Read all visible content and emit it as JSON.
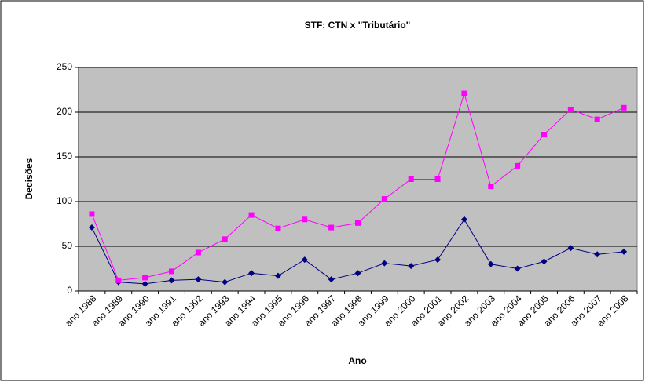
{
  "chart_data": {
    "type": "line",
    "title": "STF: CTN x \"Tributário\"",
    "x_label": "Ano",
    "y_label": "Decisões",
    "categories": [
      "ano 1988",
      "ano 1989",
      "ano 1990",
      "ano 1991",
      "ano 1992",
      "ano 1993",
      "ano 1994",
      "ano 1995",
      "ano 1996",
      "ano 1997",
      "ano 1998",
      "ano 1999",
      "ano 2000",
      "ano 2001",
      "ano 2002",
      "ano 2003",
      "ano 2004",
      "ano 2005",
      "ano 2006",
      "ano 2007",
      "ano 2008"
    ],
    "series": [
      {
        "color": "#000080",
        "marker": "diamond",
        "values": [
          71,
          10,
          8,
          12,
          13,
          10,
          20,
          17,
          35,
          13,
          20,
          31,
          28,
          35,
          80,
          30,
          25,
          33,
          48,
          41,
          44
        ]
      },
      {
        "color": "#ff00ff",
        "marker": "square",
        "values": [
          86,
          12,
          15,
          22,
          43,
          58,
          85,
          70,
          80,
          71,
          76,
          103,
          125,
          125,
          221,
          117,
          140,
          175,
          203,
          192,
          205
        ]
      }
    ],
    "ylim": [
      0,
      250
    ],
    "yticks": [
      0,
      50,
      100,
      150,
      200,
      250
    ],
    "grid": true,
    "plot_background": "#c0c0c0"
  }
}
